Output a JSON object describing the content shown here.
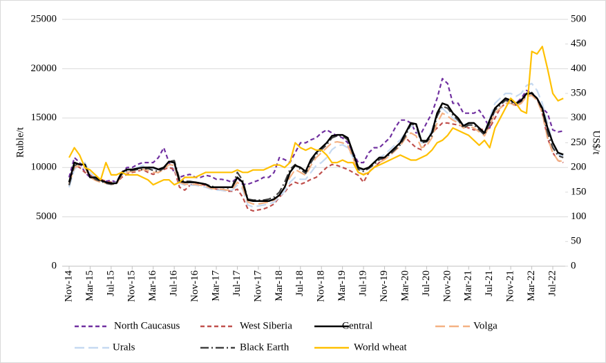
{
  "chart_data": {
    "type": "line",
    "ylabel": "Ruble/t",
    "y2label": "US$/t",
    "categories": [
      "Nov-14",
      null,
      null,
      null,
      "Mar-15",
      null,
      null,
      null,
      "Jul-15",
      null,
      null,
      null,
      "Nov-15",
      null,
      null,
      null,
      "Mar-16",
      null,
      null,
      null,
      "Jul-16",
      null,
      null,
      null,
      "Nov-16",
      null,
      null,
      null,
      "Mar-17",
      null,
      null,
      null,
      "Jul-17",
      null,
      null,
      null,
      "Nov-17",
      null,
      null,
      null,
      "Mar-18",
      null,
      null,
      null,
      "Jul-18",
      null,
      null,
      null,
      "Nov-18",
      null,
      null,
      null,
      "Mar-19",
      null,
      null,
      null,
      "Jul-19",
      null,
      null,
      null,
      "Nov-19",
      null,
      null,
      null,
      "Mar-20",
      null,
      null,
      null,
      "Jul-20",
      null,
      null,
      null,
      "Nov-20",
      null,
      null,
      null,
      "Mar-21",
      null,
      null,
      null,
      "Jul-21",
      null,
      null,
      null,
      "Nov-21",
      null,
      null,
      null,
      "Mar-22",
      null,
      null,
      null,
      "Jul-22",
      null,
      null
    ],
    "ylim": [
      0,
      25000
    ],
    "yticks": [
      0,
      5000,
      10000,
      15000,
      20000,
      25000
    ],
    "y2lim": [
      0,
      500
    ],
    "y2ticks": [
      0,
      50,
      100,
      150,
      200,
      250,
      300,
      350,
      400,
      450,
      500
    ],
    "grid": true,
    "legend": "bottom",
    "series": [
      {
        "name": "North Caucasus",
        "color": "#7030a0",
        "dash": "dash",
        "values": [
          9000,
          11000,
          10500,
          9500,
          9000,
          8800,
          8700,
          8600,
          8700,
          8500,
          9500,
          10000,
          10000,
          10300,
          10500,
          10500,
          10500,
          11000,
          12000,
          10500,
          9500,
          9000,
          9200,
          9300,
          9000,
          9000,
          9200,
          9100,
          8800,
          8800,
          8700,
          8500,
          9000,
          8300,
          8300,
          8500,
          8700,
          9000,
          9000,
          9500,
          11000,
          10800,
          10500,
          11500,
          12500,
          12500,
          12800,
          13000,
          13500,
          13800,
          13500,
          13200,
          13000,
          12500,
          11500,
          10500,
          10500,
          11500,
          12000,
          12000,
          12500,
          13000,
          14000,
          14800,
          14800,
          14500,
          13500,
          13500,
          14500,
          15500,
          17000,
          19000,
          18500,
          16500,
          16500,
          15500,
          15500,
          15500,
          15800,
          15000,
          14000,
          16000,
          16500,
          16800,
          16800,
          16500,
          17000,
          17800,
          17500,
          17000,
          16000,
          15500,
          13800,
          13600,
          13700
        ]
      },
      {
        "name": "West Siberia",
        "color": "#c0504d",
        "dash": "dash",
        "values": [
          8500,
          10200,
          10000,
          9500,
          9200,
          9000,
          8800,
          8600,
          8500,
          8400,
          9000,
          9300,
          9500,
          9600,
          9800,
          9500,
          9300,
          9500,
          9800,
          10000,
          9800,
          8000,
          7700,
          8200,
          8400,
          8300,
          8200,
          8000,
          7800,
          7700,
          7600,
          7600,
          7800,
          7000,
          5800,
          5600,
          5700,
          5800,
          6000,
          6300,
          7000,
          7500,
          8200,
          8500,
          8300,
          8500,
          8800,
          9000,
          9500,
          10000,
          10300,
          10200,
          10000,
          9800,
          9500,
          9200,
          8500,
          9500,
          10000,
          10500,
          11000,
          11500,
          12000,
          12500,
          13000,
          12500,
          12000,
          11800,
          12500,
          13500,
          14000,
          14500,
          14500,
          14400,
          14300,
          14200,
          14000,
          13800,
          13900,
          13800,
          14000,
          15000,
          16000,
          16500,
          16500,
          16300,
          16500,
          17500,
          17500,
          17000,
          15500,
          13000,
          11500,
          10700,
          10500
        ]
      },
      {
        "name": "Central",
        "color": "#000000",
        "dash": "solid",
        "values": [
          8500,
          10500,
          10300,
          10300,
          9000,
          9000,
          8700,
          8500,
          8400,
          8400,
          9500,
          9800,
          9800,
          9900,
          10000,
          10000,
          10000,
          9800,
          10000,
          10600,
          10500,
          8600,
          8500,
          8500,
          8500,
          8400,
          8300,
          8000,
          8000,
          8000,
          8000,
          8000,
          9000,
          8500,
          6700,
          6600,
          6600,
          6600,
          6600,
          6800,
          7200,
          8000,
          9500,
          10200,
          10000,
          9600,
          10800,
          11500,
          12000,
          12500,
          13200,
          13300,
          13300,
          13000,
          11500,
          10000,
          9800,
          10000,
          10500,
          11000,
          11000,
          11500,
          12000,
          12500,
          13500,
          14500,
          14400,
          12700,
          12700,
          13500,
          15500,
          16500,
          16300,
          15500,
          15000,
          14200,
          14500,
          14500,
          14000,
          13500,
          14800,
          16000,
          16500,
          17000,
          16800,
          16500,
          16800,
          17500,
          17500,
          17000,
          16000,
          14000,
          12500,
          11500,
          11300
        ]
      },
      {
        "name": "Volga",
        "color": "#f4b183",
        "dash": "longdash",
        "values": [
          8300,
          10000,
          10200,
          10000,
          9000,
          8700,
          8500,
          8400,
          8300,
          8300,
          9200,
          9500,
          9600,
          9700,
          9800,
          9700,
          9500,
          9500,
          9800,
          10300,
          10200,
          8500,
          8300,
          8300,
          8300,
          8200,
          8100,
          7900,
          7800,
          7800,
          7700,
          7800,
          8500,
          8000,
          6500,
          6300,
          6300,
          6400,
          6500,
          6700,
          7200,
          8000,
          9000,
          9800,
          9500,
          9200,
          10200,
          11000,
          11500,
          12000,
          12500,
          12600,
          12500,
          12200,
          11000,
          9500,
          9300,
          9600,
          10000,
          10500,
          10800,
          11200,
          11700,
          12200,
          13000,
          13500,
          13200,
          12000,
          12200,
          13000,
          14500,
          15500,
          15200,
          14800,
          14500,
          14000,
          14200,
          14000,
          13600,
          13200,
          14300,
          15500,
          16000,
          16500,
          16500,
          16200,
          16500,
          17200,
          17300,
          16800,
          15500,
          13000,
          11500,
          10700,
          10600
        ]
      },
      {
        "name": "Urals",
        "color": "#c5d9f1",
        "dash": "longdash",
        "values": [
          8000,
          9800,
          10300,
          10500,
          9500,
          9000,
          8700,
          8500,
          8400,
          8500,
          9300,
          9700,
          9800,
          10000,
          10200,
          10100,
          9900,
          9800,
          10000,
          10300,
          10000,
          8400,
          8200,
          8200,
          8200,
          8100,
          8000,
          7800,
          7700,
          7700,
          7600,
          7700,
          8200,
          7800,
          6200,
          6000,
          6100,
          6200,
          6300,
          6500,
          7000,
          7600,
          8500,
          9000,
          8800,
          8800,
          9500,
          10200,
          10500,
          11000,
          11800,
          12200,
          12300,
          12000,
          11000,
          9800,
          9700,
          10000,
          10500,
          11000,
          11300,
          11800,
          12300,
          12800,
          13500,
          14200,
          14000,
          12500,
          12700,
          13800,
          15500,
          16000,
          15500,
          15000,
          14700,
          14300,
          14500,
          14300,
          14000,
          13500,
          15000,
          16500,
          17000,
          17500,
          17500,
          17200,
          17500,
          18300,
          18500,
          17800,
          16500,
          14500,
          12500,
          11300,
          11200
        ]
      },
      {
        "name": "Black Earth",
        "color": "#404040",
        "dash": "dashdot",
        "values": [
          8200,
          10200,
          10400,
          10200,
          9200,
          8800,
          8600,
          8400,
          8300,
          8400,
          9300,
          9700,
          9700,
          9800,
          9800,
          9900,
          9700,
          9600,
          9900,
          10600,
          10700,
          8800,
          8600,
          8600,
          8500,
          8400,
          8300,
          8100,
          8000,
          8000,
          7900,
          8000,
          9500,
          8700,
          6800,
          6700,
          6700,
          6700,
          6800,
          7000,
          7500,
          8500,
          9800,
          10300,
          9800,
          9400,
          10500,
          11300,
          11800,
          12300,
          13000,
          13200,
          13200,
          12800,
          11300,
          9800,
          9600,
          9900,
          10300,
          10800,
          11000,
          11300,
          11800,
          12300,
          13200,
          14400,
          14300,
          12500,
          12600,
          13200,
          15200,
          16200,
          16000,
          15300,
          14800,
          14000,
          14300,
          14300,
          13800,
          13300,
          14500,
          15800,
          16300,
          16800,
          16600,
          16400,
          16700,
          17300,
          17600,
          17000,
          15800,
          13500,
          12000,
          11200,
          11000
        ]
      },
      {
        "name": "World wheat",
        "color": "#ffc000",
        "dash": "solid",
        "axis": "y2",
        "values": [
          220,
          240,
          225,
          200,
          195,
          185,
          175,
          210,
          185,
          185,
          190,
          185,
          185,
          185,
          180,
          175,
          165,
          170,
          175,
          175,
          165,
          170,
          180,
          180,
          180,
          185,
          190,
          190,
          190,
          190,
          190,
          190,
          195,
          190,
          190,
          195,
          195,
          195,
          200,
          205,
          205,
          200,
          210,
          250,
          240,
          235,
          240,
          235,
          235,
          225,
          210,
          210,
          215,
          210,
          210,
          190,
          185,
          190,
          200,
          205,
          210,
          215,
          220,
          225,
          220,
          215,
          215,
          220,
          225,
          235,
          250,
          255,
          265,
          280,
          275,
          270,
          265,
          255,
          245,
          255,
          240,
          280,
          300,
          320,
          340,
          330,
          315,
          310,
          435,
          430,
          445,
          400,
          350,
          335,
          340
        ]
      }
    ]
  }
}
